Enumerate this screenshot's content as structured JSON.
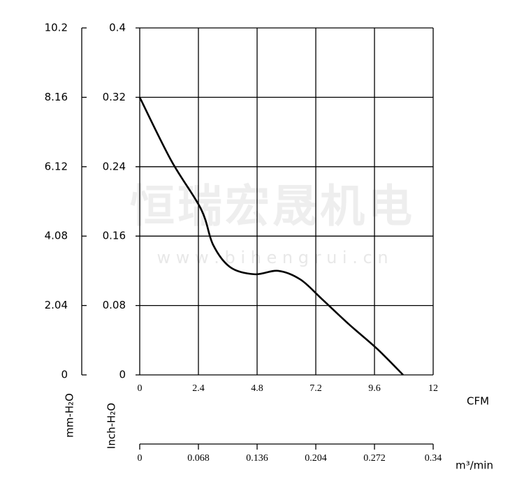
{
  "chart_data": {
    "type": "line",
    "watermark": "恒瑞宏晟机电",
    "watermark_url": "w w w . b i h e n g r u i . c n",
    "x": [
      0,
      1.29,
      2.51,
      3.0,
      3.71,
      4.71,
      5.66,
      6.57,
      7.43,
      8.57,
      9.71,
      10.77
    ],
    "series": [
      {
        "color": "#000000",
        "values": [
          0.32,
          0.247,
          0.191,
          0.15,
          0.124,
          0.116,
          0.12,
          0.11,
          0.088,
          0.058,
          0.03,
          0
        ]
      }
    ],
    "xlim": [
      0,
      12
    ],
    "xticks": [
      0,
      2.4,
      4.8,
      7.2,
      9.6,
      12
    ],
    "xlabel": "CFM",
    "ylim": [
      0,
      0.4
    ],
    "yticks": [
      0,
      0.08,
      0.16,
      0.24,
      0.32,
      0.4
    ],
    "ylabel": "Inch-H₂O",
    "y2lim": [
      0,
      10.2
    ],
    "y2ticks": [
      0,
      2.04,
      4.08,
      6.12,
      8.16,
      10.2
    ],
    "y2label": "mm-H₂O",
    "x2lim": [
      0,
      0.34
    ],
    "x2ticks": [
      0,
      0.068,
      0.136,
      0.204,
      0.272,
      0.34
    ],
    "x2label": "m³/min",
    "grid": true
  }
}
